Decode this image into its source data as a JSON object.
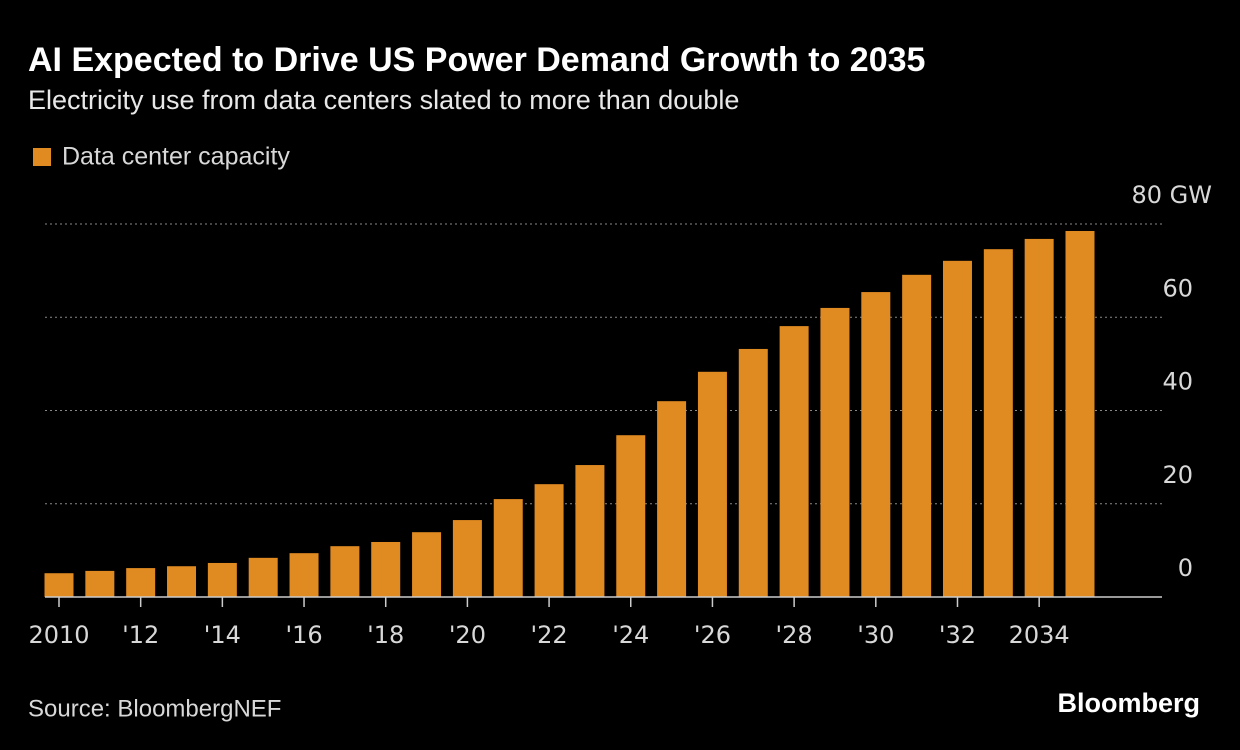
{
  "chart_data": {
    "type": "bar",
    "title": "AI Expected to Drive US Power Demand Growth to 2035",
    "subtitle": "Electricity use from data centers slated to more than double",
    "source": "Source: BloombergNEF",
    "brand": "Bloomberg",
    "categories": [
      "2010",
      null,
      "'12",
      null,
      "'14",
      null,
      "'16",
      null,
      "'18",
      null,
      "'20",
      null,
      "'22",
      null,
      "'24",
      null,
      "'26",
      null,
      "'28",
      null,
      "'30",
      null,
      "'32",
      null,
      "2034",
      null
    ],
    "series": [
      {
        "name": "Data center capacity",
        "color": "#e08a22",
        "values": [
          5.1,
          5.6,
          6.2,
          6.6,
          7.3,
          8.4,
          9.4,
          10.9,
          11.8,
          13.9,
          16.5,
          21.0,
          24.2,
          28.3,
          34.7,
          42.0,
          48.3,
          53.2,
          58.1,
          62.0,
          65.4,
          69.1,
          72.1,
          74.6,
          76.8,
          78.5
        ]
      }
    ],
    "ylim": [
      0,
      80
    ],
    "yticks": [
      0,
      20,
      40,
      60,
      {
        "value": 80,
        "label": "80 GW"
      }
    ],
    "grid": true
  }
}
